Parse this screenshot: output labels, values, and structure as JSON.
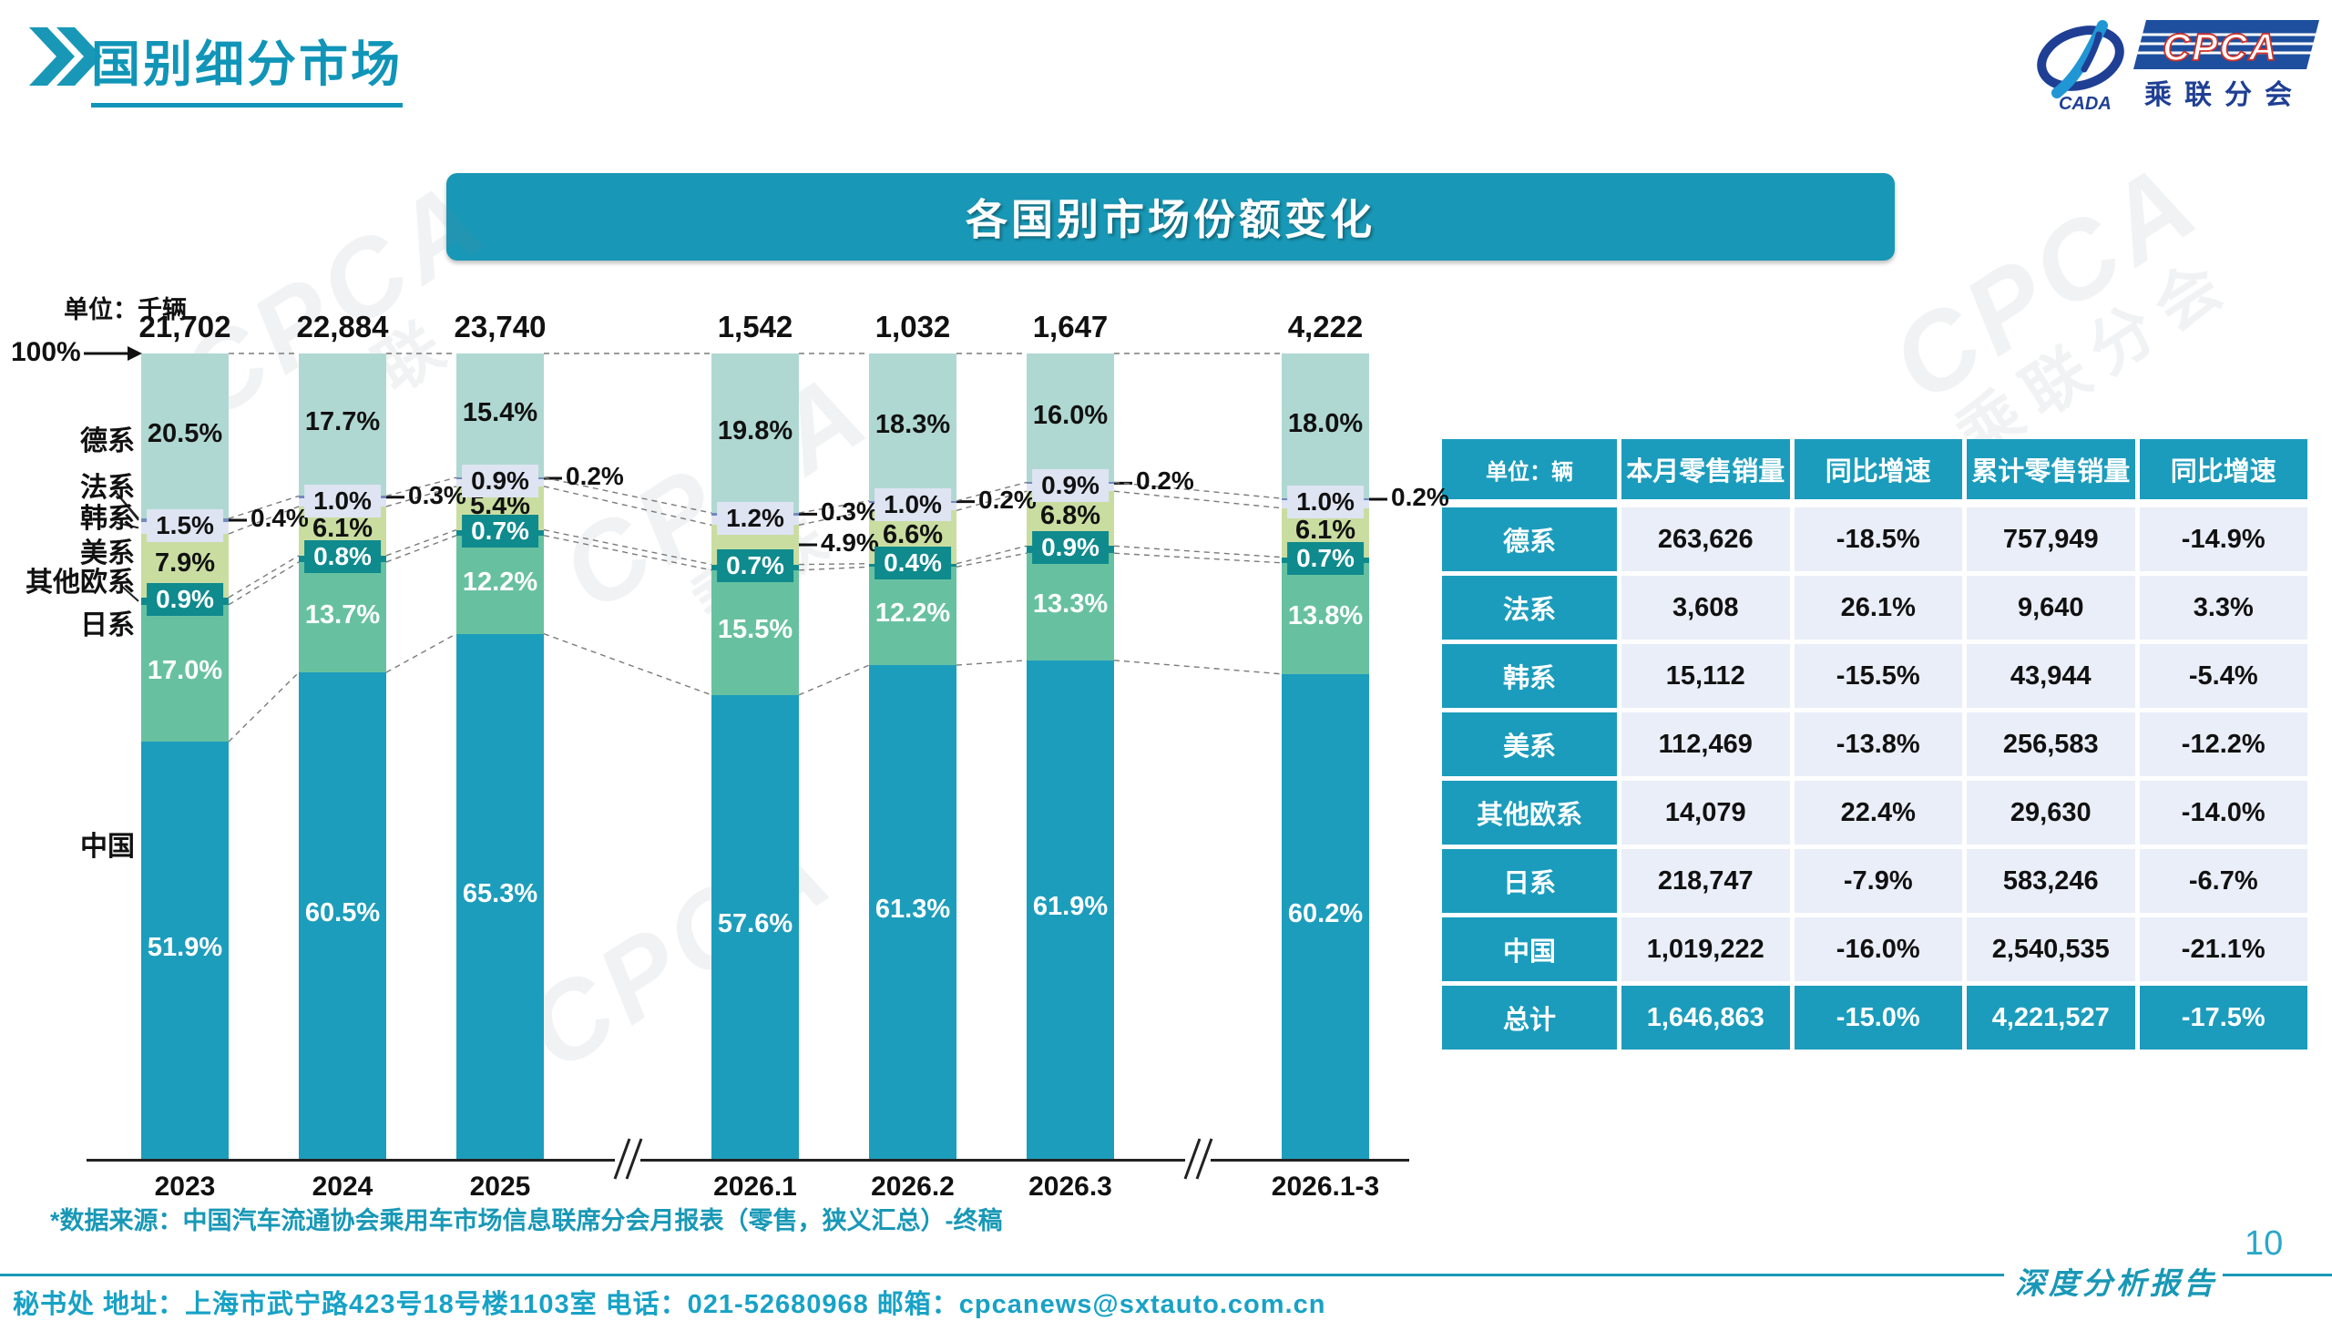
{
  "page": {
    "title": "国别细分市场",
    "page_number": "10",
    "report_label": "深度分析报告",
    "footer": "秘书处  地址：上海市武宁路423号18号楼1103室 电话：021-52680968  邮箱：cpcanews@sxtauto.com.cn",
    "source_note": "*数据来源：中国汽车流通协会乘用车市场信息联席分会月报表（零售，狭义汇总）-终稿"
  },
  "logo": {
    "cpca": "CPCA",
    "cada": "CADA",
    "subtitle": "乘联分会"
  },
  "banner": {
    "title": "各国别市场份额变化"
  },
  "colors": {
    "brand_teal": "#1898b6",
    "table_header": "#1b9cbc",
    "table_cell": "#e9eef8"
  },
  "chart_data": {
    "type": "bar",
    "stacked": true,
    "title": "各国别市场份额变化",
    "unit_label": "单位：千辆",
    "axis_label_100": "100%",
    "categories": [
      "2023",
      "2024",
      "2025",
      "2026.1",
      "2026.2",
      "2026.3",
      "2026.1-3"
    ],
    "totals": [
      "21,702",
      "22,884",
      "23,740",
      "1,542",
      "1,032",
      "1,647",
      "4,222"
    ],
    "ylim": [
      0,
      100
    ],
    "grid": false,
    "legend_position": "left-labels",
    "axis_breaks_after_category_index": [
      2,
      5
    ],
    "series": [
      {
        "name": "德系",
        "color": "#b0d8d2",
        "label_style": "inside-dark",
        "values": [
          20.5,
          17.7,
          15.4,
          19.8,
          18.3,
          16.0,
          18.0
        ]
      },
      {
        "name": "法系",
        "color": "#7388c0",
        "label_style": "outside",
        "values": [
          0.4,
          0.3,
          0.2,
          0.3,
          0.2,
          0.2,
          0.2
        ]
      },
      {
        "name": "韩系",
        "color": "#dee4f2",
        "label_style": "boxed-light",
        "values": [
          1.5,
          1.0,
          0.9,
          1.2,
          1.0,
          0.9,
          1.0
        ]
      },
      {
        "name": "美系",
        "color": "#c9dda1",
        "label_style": "inside-dark",
        "outside_indices": [
          3
        ],
        "values": [
          7.9,
          6.1,
          5.4,
          4.9,
          6.6,
          6.8,
          6.1
        ]
      },
      {
        "name": "其他欧系",
        "color": "#0f8a8d",
        "label_style": "boxed-dark",
        "values": [
          0.9,
          0.8,
          0.7,
          0.7,
          0.4,
          0.9,
          0.7
        ]
      },
      {
        "name": "日系",
        "color": "#67c1a0",
        "label_style": "inside-white",
        "values": [
          17.0,
          13.7,
          12.2,
          15.5,
          12.2,
          13.3,
          13.8
        ]
      },
      {
        "name": "中国",
        "color": "#1d9dbc",
        "label_style": "inside-white",
        "values": [
          51.9,
          60.5,
          65.3,
          57.6,
          61.3,
          61.9,
          60.2
        ]
      }
    ]
  },
  "table": {
    "unit_header": "单位：辆",
    "columns": [
      "本月零售销量",
      "同比增速",
      "累计零售销量",
      "同比增速"
    ],
    "rows": [
      {
        "label": "德系",
        "cells": [
          "263,626",
          "-18.5%",
          "757,949",
          "-14.9%"
        ]
      },
      {
        "label": "法系",
        "cells": [
          "3,608",
          "26.1%",
          "9,640",
          "3.3%"
        ]
      },
      {
        "label": "韩系",
        "cells": [
          "15,112",
          "-15.5%",
          "43,944",
          "-5.4%"
        ]
      },
      {
        "label": "美系",
        "cells": [
          "112,469",
          "-13.8%",
          "256,583",
          "-12.2%"
        ]
      },
      {
        "label": "其他欧系",
        "cells": [
          "14,079",
          "22.4%",
          "29,630",
          "-14.0%"
        ]
      },
      {
        "label": "日系",
        "cells": [
          "218,747",
          "-7.9%",
          "583,246",
          "-6.7%"
        ]
      },
      {
        "label": "中国",
        "cells": [
          "1,019,222",
          "-16.0%",
          "2,540,535",
          "-21.1%"
        ]
      },
      {
        "label": "总计",
        "cells": [
          "1,646,863",
          "-15.0%",
          "4,221,527",
          "-17.5%"
        ],
        "is_total": true
      }
    ]
  }
}
